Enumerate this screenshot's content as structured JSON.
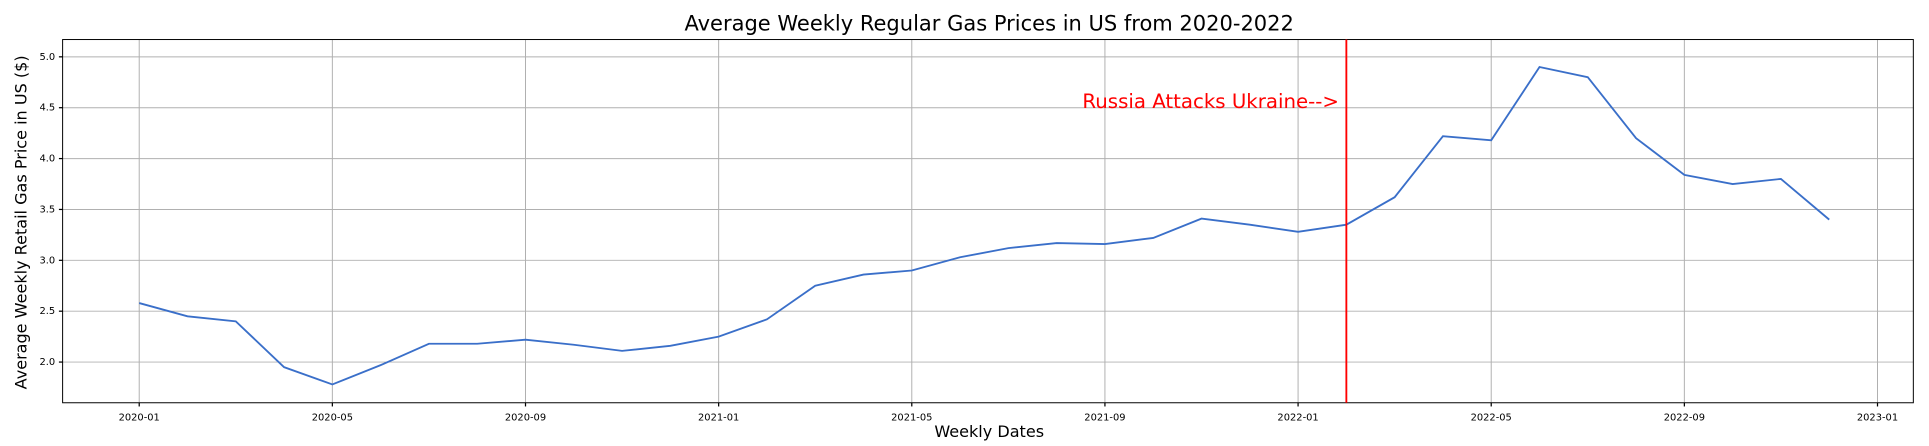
{
  "chart_data": {
    "type": "line",
    "title": "Average Weekly Regular Gas Prices in US from 2020-2022",
    "x_label": "Weekly Dates",
    "y_label": "Average Weekly Retail Gas Price in US ($)",
    "x": [
      "2020-01",
      "2020-02",
      "2020-03",
      "2020-04",
      "2020-05",
      "2020-06",
      "2020-07",
      "2020-08",
      "2020-09",
      "2020-10",
      "2020-11",
      "2020-12",
      "2021-01",
      "2021-02",
      "2021-03",
      "2021-04",
      "2021-05",
      "2021-06",
      "2021-07",
      "2021-08",
      "2021-09",
      "2021-10",
      "2021-11",
      "2021-12",
      "2022-01",
      "2022-02",
      "2022-03",
      "2022-04",
      "2022-05",
      "2022-06",
      "2022-07",
      "2022-08",
      "2022-09",
      "2022-10",
      "2022-11",
      "2022-12"
    ],
    "series": [
      {
        "color": "#3a6fc9",
        "values": [
          2.58,
          2.45,
          2.4,
          1.95,
          1.78,
          1.97,
          2.18,
          2.18,
          2.22,
          2.17,
          2.11,
          2.16,
          2.25,
          2.42,
          2.75,
          2.86,
          2.9,
          3.03,
          3.12,
          3.17,
          3.16,
          3.22,
          3.41,
          3.35,
          3.28,
          3.35,
          3.62,
          4.22,
          4.18,
          4.9,
          4.8,
          4.2,
          3.84,
          3.75,
          3.8,
          3.4
        ]
      }
    ],
    "xticks": [
      "2020-01",
      "2020-05",
      "2020-09",
      "2021-01",
      "2021-05",
      "2021-09",
      "2022-01",
      "2022-05",
      "2022-09",
      "2023-01"
    ],
    "ylim": [
      1.6,
      5.17
    ],
    "yticks": [
      {
        "value": 2,
        "label": "2.0"
      },
      {
        "value": 2.5,
        "label": "2.5"
      },
      {
        "value": 3,
        "label": "3.0"
      },
      {
        "value": 3.5,
        "label": "3.5"
      },
      {
        "value": 4,
        "label": "4.0"
      },
      {
        "value": 4.5,
        "label": "4.5"
      },
      {
        "value": 5,
        "label": "5.0"
      }
    ],
    "grid": true,
    "vline": {
      "x": "2022-02",
      "color": "#ff0000",
      "label": "Russia Attacks Ukraine-->"
    }
  }
}
